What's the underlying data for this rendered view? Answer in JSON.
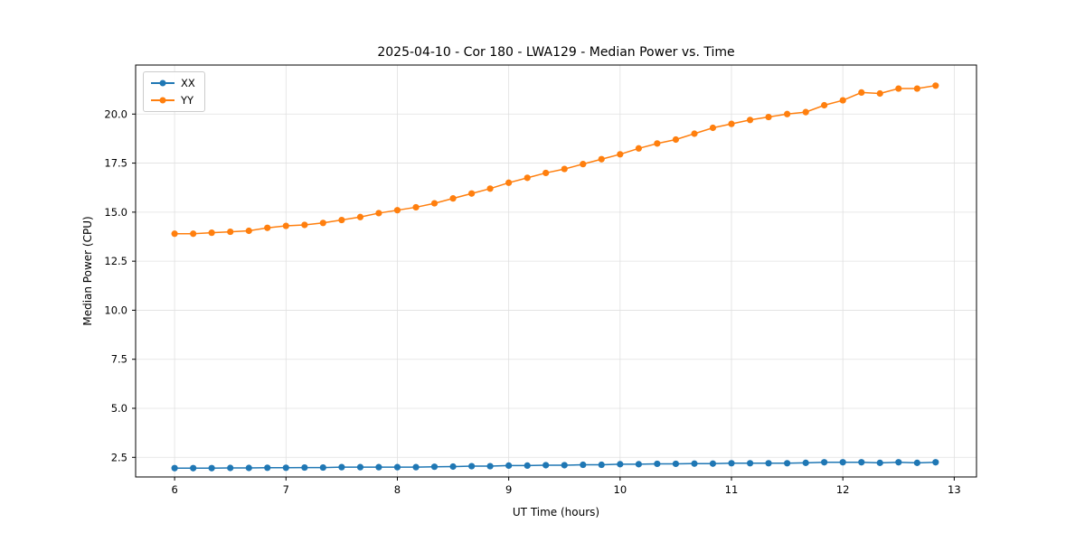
{
  "chart_data": {
    "type": "line",
    "title": "2025-04-10 - Cor 180 - LWA129 - Median Power vs. Time",
    "xlabel": "UT Time (hours)",
    "ylabel": "Median Power (CPU)",
    "xlim": [
      5.65,
      13.2
    ],
    "ylim": [
      1.5,
      22.5
    ],
    "xticks": [
      6,
      7,
      8,
      9,
      10,
      11,
      12,
      13
    ],
    "xtick_labels": [
      "6",
      "7",
      "8",
      "9",
      "10",
      "11",
      "12",
      "13"
    ],
    "yticks": [
      2.5,
      5.0,
      7.5,
      10.0,
      12.5,
      15.0,
      17.5,
      20.0
    ],
    "ytick_labels": [
      "2.5",
      "5.0",
      "7.5",
      "10.0",
      "12.5",
      "15.0",
      "17.5",
      "20.0"
    ],
    "grid": true,
    "legend_position": "upper left",
    "x": [
      6.0,
      6.167,
      6.333,
      6.5,
      6.667,
      6.833,
      7.0,
      7.167,
      7.333,
      7.5,
      7.667,
      7.833,
      8.0,
      8.167,
      8.333,
      8.5,
      8.667,
      8.833,
      9.0,
      9.167,
      9.333,
      9.5,
      9.667,
      9.833,
      10.0,
      10.167,
      10.333,
      10.5,
      10.667,
      10.833,
      11.0,
      11.167,
      11.333,
      11.5,
      11.667,
      11.833,
      12.0,
      12.167,
      12.333,
      12.5,
      12.667,
      12.833
    ],
    "series": [
      {
        "name": "XX",
        "color": "#1f77b4",
        "values": [
          1.95,
          1.95,
          1.95,
          1.96,
          1.96,
          1.97,
          1.97,
          1.98,
          1.98,
          2.0,
          2.0,
          2.0,
          2.0,
          2.0,
          2.02,
          2.03,
          2.05,
          2.05,
          2.08,
          2.08,
          2.1,
          2.1,
          2.12,
          2.12,
          2.15,
          2.15,
          2.17,
          2.17,
          2.18,
          2.18,
          2.2,
          2.2,
          2.2,
          2.2,
          2.22,
          2.25,
          2.25,
          2.25,
          2.22,
          2.25,
          2.22,
          2.25
        ]
      },
      {
        "name": "YY",
        "color": "#ff7f0e",
        "values": [
          13.9,
          13.9,
          13.95,
          14.0,
          14.05,
          14.2,
          14.3,
          14.35,
          14.45,
          14.6,
          14.75,
          14.95,
          15.1,
          15.25,
          15.45,
          15.7,
          15.95,
          16.2,
          16.5,
          16.75,
          17.0,
          17.2,
          17.45,
          17.7,
          17.95,
          18.25,
          18.5,
          18.7,
          19.0,
          19.3,
          19.5,
          19.7,
          19.85,
          20.0,
          20.1,
          20.45,
          20.7,
          21.1,
          21.05,
          21.3,
          21.3,
          21.45
        ]
      }
    ]
  },
  "style": {
    "grid_color": "#e0e0e0",
    "axis_color": "#000000",
    "tick_label_color": "#000000"
  }
}
